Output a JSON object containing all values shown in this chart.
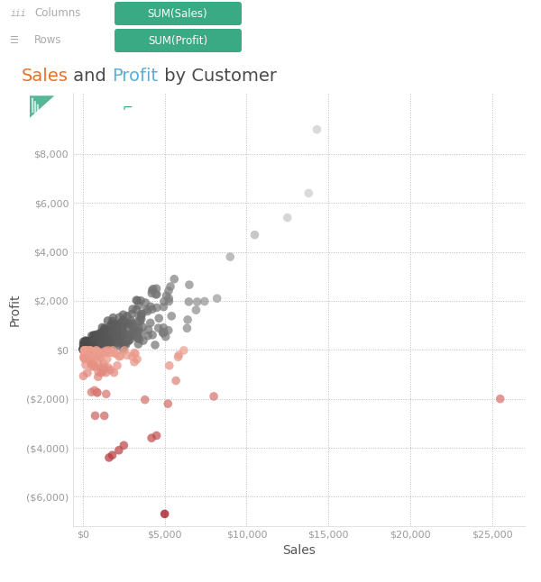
{
  "title_parts": [
    [
      "Sales",
      "#e8722a"
    ],
    [
      " and ",
      "#4a4a4a"
    ],
    [
      "Profit",
      "#5bafd6"
    ],
    [
      " by Customer",
      "#4a4a4a"
    ]
  ],
  "xlabel": "Sales",
  "ylabel": "Profit",
  "xlim": [
    -600,
    27000
  ],
  "ylim": [
    -7200,
    10500
  ],
  "xticks": [
    0,
    5000,
    10000,
    15000,
    20000,
    25000
  ],
  "yticks": [
    -6000,
    -4000,
    -2000,
    0,
    2000,
    4000,
    6000,
    8000
  ],
  "background_color": "#ffffff",
  "plot_bg_color": "#ffffff",
  "header_bg": "#f7f7f7",
  "header_line_color": "#dddddd",
  "pill_color": "#3aaa85",
  "columns_label": "Columns",
  "rows_label": "Rows",
  "columns_pill": "SUM(Sales)",
  "rows_pill": "SUM(Profit)",
  "axis_label_color": "#555555",
  "tick_label_color": "#999999",
  "tick_fontsize": 8,
  "axis_label_fontsize": 10,
  "title_fontsize": 14,
  "dot_alpha": 0.72,
  "dot_size": 48,
  "seed": 42
}
